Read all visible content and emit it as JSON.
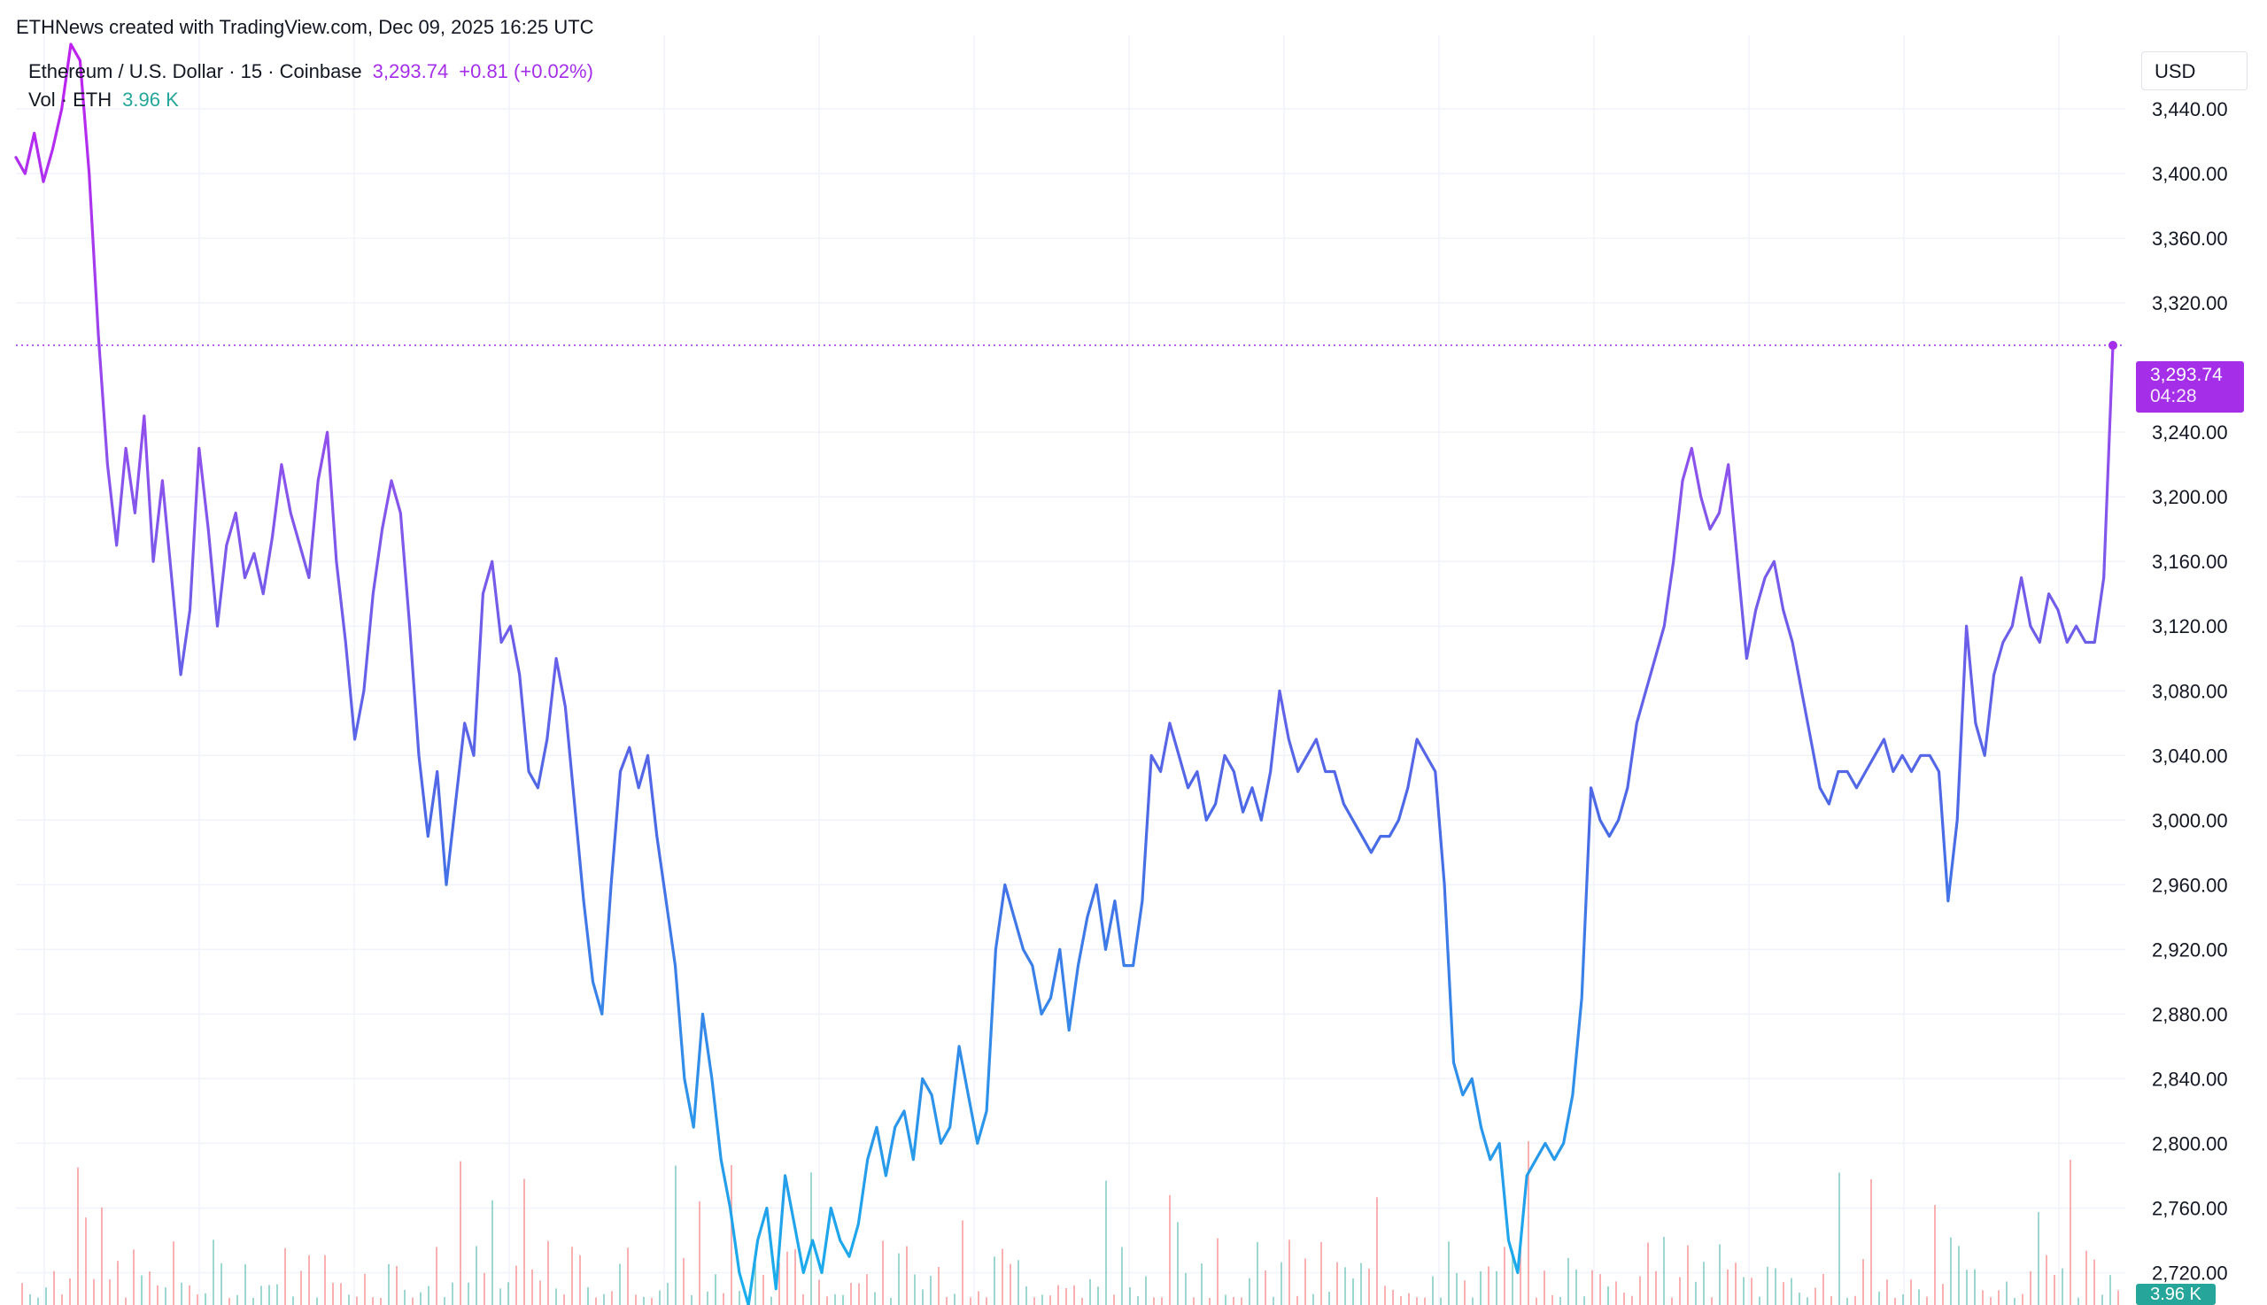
{
  "header": {
    "credit": "ETHNews created with TradingView.com, Dec 09, 2025 16:25 UTC"
  },
  "legend": {
    "symbol": "Ethereum / U.S. Dollar · 15 · Coinbase",
    "last_price": "3,293.74",
    "change": "+0.81 (+0.02%)",
    "volume_label": "Vol · ETH",
    "volume_value": "3.96 K"
  },
  "price_scale": {
    "currency": "USD",
    "tag_price": "3,293.74",
    "tag_countdown": "04:28",
    "volume_tag": "3.96 K"
  },
  "colors": {
    "line_top": "#c020f0",
    "line_upper": "#8a54ec",
    "line_mid": "#4a6ae6",
    "line_bottom": "#18b0ec",
    "accent_purple": "#a52fe8",
    "volume_teal": "#26a69a",
    "volume_red": "#ef5350",
    "grid": "#f0f3fa",
    "axis_text": "#131722"
  },
  "chart_data": {
    "type": "line",
    "title": "",
    "xlabel": "",
    "ylabel": "",
    "ylim": [
      2700,
      3480
    ],
    "yticks": [
      2720,
      2760,
      2800,
      2840,
      2880,
      2920,
      2960,
      3000,
      3040,
      3080,
      3120,
      3160,
      3200,
      3240,
      3320,
      3360,
      3400,
      3440
    ],
    "ytick_labels": [
      "2,720.00",
      "2,760.00",
      "2,800.00",
      "2,840.00",
      "2,880.00",
      "2,920.00",
      "2,960.00",
      "3,000.00",
      "3,040.00",
      "3,080.00",
      "3,120.00",
      "3,160.00",
      "3,200.00",
      "3,240.00",
      "3,320.00",
      "3,360.00",
      "3,400.00",
      "3,440.00"
    ],
    "last_value": 3293.74,
    "grid": true,
    "series": [
      {
        "values": [
          3410,
          3400,
          3425,
          3395,
          3415,
          3440,
          3480,
          3470,
          3400,
          3300,
          3220,
          3170,
          3230,
          3190,
          3250,
          3160,
          3210,
          3150,
          3090,
          3130,
          3230,
          3180,
          3120,
          3170,
          3190,
          3150,
          3165,
          3140,
          3175,
          3220,
          3190,
          3170,
          3150,
          3210,
          3240,
          3160,
          3110,
          3050,
          3080,
          3140,
          3180,
          3210,
          3190,
          3120,
          3040,
          2990,
          3030,
          2960,
          3010,
          3060,
          3040,
          3140,
          3160,
          3110,
          3120,
          3090,
          3030,
          3020,
          3050,
          3100,
          3070,
          3010,
          2950,
          2900,
          2880,
          2960,
          3030,
          3045,
          3020,
          3040,
          2990,
          2950,
          2910,
          2840,
          2810,
          2880,
          2840,
          2790,
          2760,
          2720,
          2700,
          2740,
          2760,
          2710,
          2780,
          2750,
          2720,
          2740,
          2720,
          2760,
          2740,
          2730,
          2750,
          2790,
          2810,
          2780,
          2810,
          2820,
          2790,
          2840,
          2830,
          2800,
          2810,
          2860,
          2830,
          2800,
          2820,
          2920,
          2960,
          2940,
          2920,
          2910,
          2880,
          2890,
          2920,
          2870,
          2910,
          2940,
          2960,
          2920,
          2950,
          2910,
          2910,
          2950,
          3040,
          3030,
          3060,
          3040,
          3020,
          3030,
          3000,
          3010,
          3040,
          3030,
          3005,
          3020,
          3000,
          3030,
          3080,
          3050,
          3030,
          3040,
          3050,
          3030,
          3030,
          3010,
          3000,
          2990,
          2980,
          2990,
          2990,
          3000,
          3020,
          3050,
          3040,
          3030,
          2960,
          2850,
          2830,
          2840,
          2810,
          2790,
          2800,
          2740,
          2720,
          2780,
          2790,
          2800,
          2790,
          2800,
          2830,
          2890,
          3020,
          3000,
          2990,
          3000,
          3020,
          3060,
          3080,
          3100,
          3120,
          3160,
          3210,
          3230,
          3200,
          3180,
          3190,
          3220,
          3160,
          3100,
          3130,
          3150,
          3160,
          3130,
          3110,
          3080,
          3050,
          3020,
          3010,
          3030,
          3030,
          3020,
          3030,
          3040,
          3050,
          3030,
          3040,
          3030,
          3040,
          3040,
          3030,
          2950,
          3000,
          3120,
          3060,
          3040,
          3090,
          3110,
          3120,
          3150,
          3120,
          3110,
          3140,
          3130,
          3110,
          3120,
          3110,
          3110,
          3150,
          3293.74
        ]
      }
    ]
  }
}
